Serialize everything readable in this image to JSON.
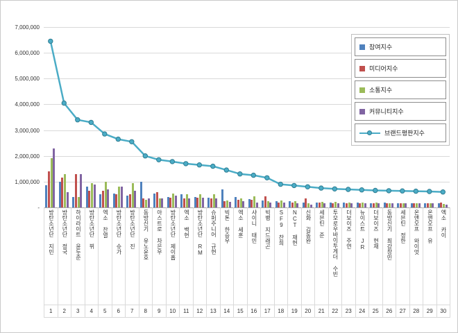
{
  "chart": {
    "background": "#ffffff",
    "frame_border": "#c9c9c9",
    "gridline_color": "#d9d9d9",
    "axis_line_color": "#a6a6a6",
    "text_color": "#333333",
    "y_ticks": [
      {
        "label": "7,000,000",
        "value": 7000000
      },
      {
        "label": "6,000,000",
        "value": 6000000
      },
      {
        "label": "5,000,000",
        "value": 5000000
      },
      {
        "label": "4,000,000",
        "value": 4000000
      },
      {
        "label": "3,000,000",
        "value": 3000000
      },
      {
        "label": "2,000,000",
        "value": 2000000
      },
      {
        "label": "1,000,000",
        "value": 1000000
      },
      {
        "label": "-",
        "value": 0
      }
    ]
  },
  "chart_data": {
    "type": "bar+line",
    "title": "",
    "legend_position": "top-right",
    "grid": "horizontal",
    "ylim": [
      0,
      7000000
    ],
    "categories": [
      "방탄소년단 지민",
      "방탄소년단 정국",
      "하이라이트 윤두준",
      "방탄소년단 뷔",
      "엑소 찬열",
      "방탄소년단 슈가",
      "방탄소년단 진",
      "동방신기 유노윤호",
      "아스트로 차은우",
      "방탄소년단 제이홉",
      "엑소 백현",
      "방탄소년단 RM",
      "슈퍼주니어 규현",
      "빅톤 한승우",
      "엑소 세훈",
      "샤이니 태민",
      "빅뱅 지드래곤",
      "SF9 찬희",
      "NCT 재현",
      "신화 김동완",
      "세븐틴 준",
      "투모로우바이투게더 수빈",
      "더보이즈 주연",
      "뉴이스트 JR",
      "더보이즈 현재",
      "동방신기 최강창민",
      "세븐틴 정한",
      "온앤오프 와이엇",
      "온앤오프 유",
      "엑소 카이"
    ],
    "ranks": [
      "1",
      "2",
      "3",
      "4",
      "5",
      "6",
      "7",
      "8",
      "9",
      "10",
      "11",
      "12",
      "13",
      "14",
      "15",
      "16",
      "17",
      "18",
      "19",
      "20",
      "21",
      "22",
      "23",
      "24",
      "25",
      "26",
      "27",
      "28",
      "29",
      "30"
    ],
    "series": [
      {
        "name": "참여지수",
        "type": "bar",
        "color": "#4F81BD",
        "values": [
          850000,
          1000000,
          400000,
          800000,
          500000,
          550000,
          450000,
          1000000,
          550000,
          400000,
          500000,
          400000,
          380000,
          700000,
          400000,
          330000,
          280000,
          240000,
          250000,
          180000,
          200000,
          200000,
          180000,
          180000,
          170000,
          190000,
          170000,
          160000,
          160000,
          150000
        ]
      },
      {
        "name": "미디어지수",
        "type": "bar",
        "color": "#C0504D",
        "values": [
          1400000,
          1150000,
          1300000,
          650000,
          650000,
          500000,
          500000,
          350000,
          600000,
          380000,
          350000,
          380000,
          350000,
          250000,
          300000,
          300000,
          420000,
          200000,
          200000,
          350000,
          180000,
          150000,
          160000,
          150000,
          150000,
          160000,
          150000,
          150000,
          150000,
          200000
        ]
      },
      {
        "name": "소통지수",
        "type": "bar",
        "color": "#9BBB59",
        "values": [
          1900000,
          1300000,
          400000,
          950000,
          1000000,
          800000,
          950000,
          300000,
          350000,
          550000,
          500000,
          500000,
          520000,
          280000,
          350000,
          420000,
          250000,
          260000,
          250000,
          150000,
          220000,
          220000,
          200000,
          200000,
          190000,
          150000,
          170000,
          170000,
          160000,
          130000
        ]
      },
      {
        "name": "커뮤니티지수",
        "type": "bar",
        "color": "#8064A2",
        "values": [
          2300000,
          600000,
          1300000,
          900000,
          700000,
          800000,
          650000,
          350000,
          350000,
          450000,
          350000,
          370000,
          350000,
          220000,
          250000,
          200000,
          200000,
          200000,
          150000,
          120000,
          150000,
          150000,
          160000,
          150000,
          150000,
          150000,
          150000,
          150000,
          150000,
          120000
        ]
      },
      {
        "name": "브랜드평판지수",
        "type": "line",
        "color": "#4BACC6",
        "marker": "circle",
        "values": [
          6450000,
          4050000,
          3400000,
          3300000,
          2850000,
          2650000,
          2550000,
          2000000,
          1850000,
          1780000,
          1700000,
          1650000,
          1600000,
          1450000,
          1300000,
          1250000,
          1150000,
          900000,
          850000,
          800000,
          750000,
          720000,
          700000,
          680000,
          660000,
          650000,
          640000,
          630000,
          620000,
          600000
        ]
      }
    ]
  }
}
